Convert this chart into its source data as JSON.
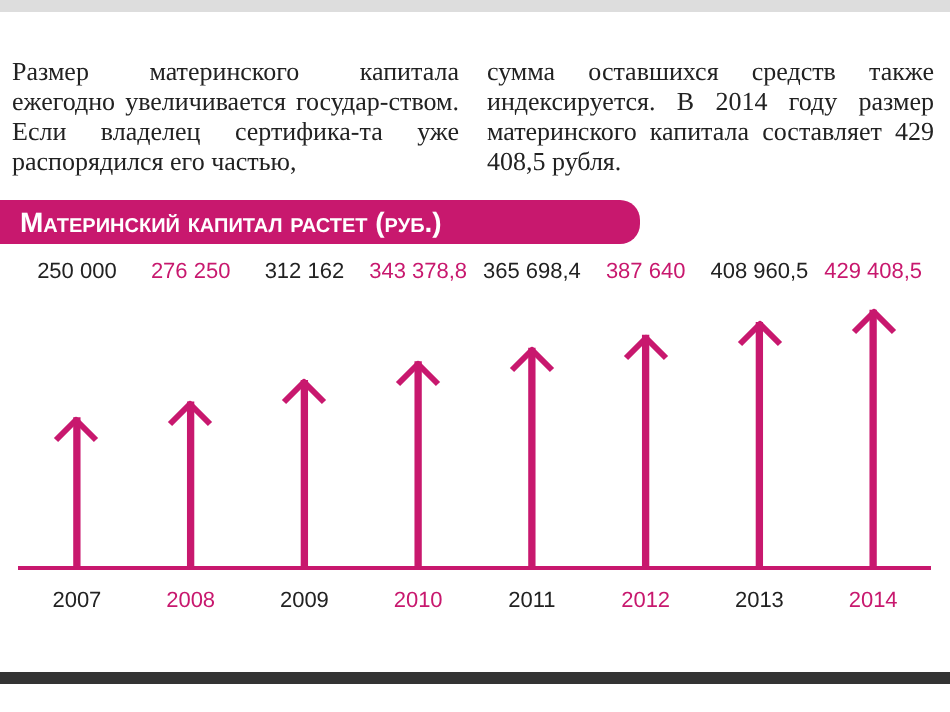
{
  "chart_data": {
    "type": "bar",
    "title": "Материнский капитал растет (руб.)",
    "categories": [
      "2007",
      "2008",
      "2009",
      "2010",
      "2011",
      "2012",
      "2013",
      "2014"
    ],
    "values": [
      250000,
      276250,
      312162,
      343378.8,
      365698.4,
      387640,
      408960.5,
      429408.5
    ],
    "value_labels": [
      "250 000",
      "276 250",
      "312 162",
      "343 378,8",
      "365 698,4",
      "387 640",
      "408 960,5",
      "429 408,5"
    ],
    "color": "#c8186e",
    "grid": false,
    "legend": false,
    "annotations": [
      "Размер материнского капитала ежегодно увеличивается государ-ством. Если владелец сертифика-та уже распорядился его частью,",
      "сумма оставшихся средств также индексируется. В 2014 году размер материнского капитала составляет 429 408,5 рубля."
    ]
  }
}
